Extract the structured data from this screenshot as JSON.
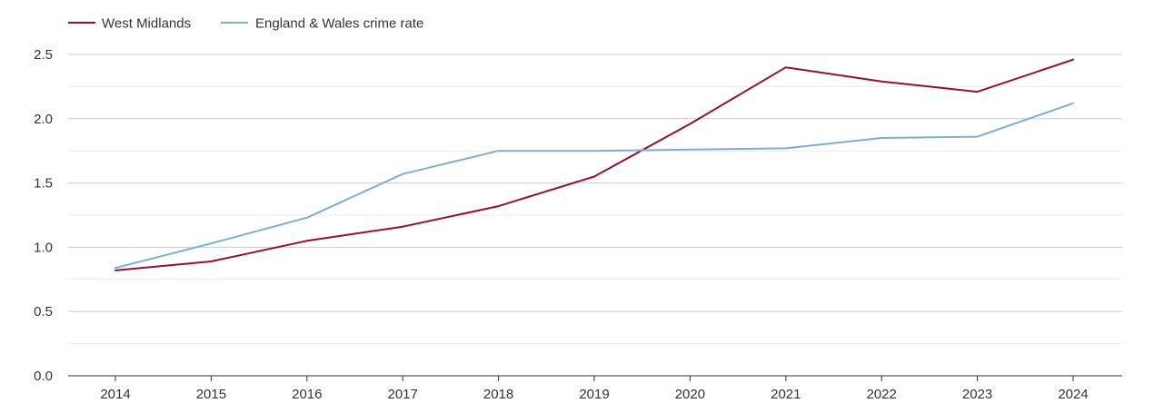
{
  "chart_data": {
    "type": "line",
    "title": "",
    "xlabel": "",
    "ylabel": "",
    "categories": [
      "2014",
      "2015",
      "2016",
      "2017",
      "2018",
      "2019",
      "2020",
      "2021",
      "2022",
      "2023",
      "2024"
    ],
    "ylim": [
      0,
      2.5
    ],
    "yticks": [
      "0.0",
      "0.5",
      "1.0",
      "1.5",
      "2.0",
      "2.5"
    ],
    "grid": true,
    "legend_position": "top-left",
    "series": [
      {
        "name": "West Midlands",
        "color": "#9b0d2e",
        "values": [
          0.82,
          0.89,
          1.05,
          1.16,
          1.32,
          1.55,
          1.96,
          2.4,
          2.29,
          2.21,
          2.46
        ]
      },
      {
        "name": "England & Wales crime rate",
        "color": "#7bafd4",
        "values": [
          0.84,
          1.03,
          1.23,
          1.57,
          1.75,
          1.75,
          1.76,
          1.77,
          1.85,
          1.86,
          2.12
        ]
      }
    ]
  }
}
